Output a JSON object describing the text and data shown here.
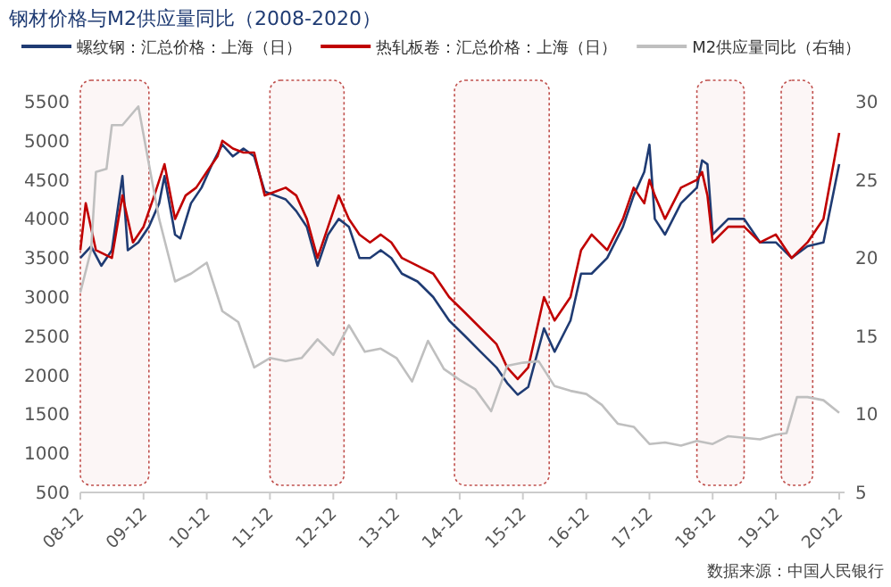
{
  "chart_data": {
    "type": "line",
    "title": "钢材价格与M2供应量同比（2008-2020）",
    "legend": "top",
    "grid": false,
    "line_style": "solid",
    "xlim": [
      "2008-12",
      "2021-01"
    ],
    "xticks": [
      {
        "value": "2008-12",
        "label": "08-12"
      },
      {
        "value": "2009-12",
        "label": "09-12"
      },
      {
        "value": "2010-12",
        "label": "10-12"
      },
      {
        "value": "2011-12",
        "label": "11-12"
      },
      {
        "value": "2012-12",
        "label": "12-12"
      },
      {
        "value": "2013-12",
        "label": "13-12"
      },
      {
        "value": "2014-12",
        "label": "14-12"
      },
      {
        "value": "2015-12",
        "label": "15-12"
      },
      {
        "value": "2016-12",
        "label": "16-12"
      },
      {
        "value": "2017-12",
        "label": "17-12"
      },
      {
        "value": "2018-12",
        "label": "18-12"
      },
      {
        "value": "2019-12",
        "label": "19-12"
      },
      {
        "value": "2020-12",
        "label": "20-12"
      }
    ],
    "ylim": [
      500,
      5500
    ],
    "yticks": [
      500,
      1000,
      1500,
      2000,
      2500,
      3000,
      3500,
      4000,
      4500,
      5000,
      5500
    ],
    "y2lim": [
      5,
      30
    ],
    "y2ticks": [
      5,
      10,
      15,
      20,
      25,
      30
    ],
    "series": [
      {
        "name": "螺纹钢：汇总价格：上海（日）",
        "color": "#1f3b73",
        "x": [
          "2008-12",
          "2009-02",
          "2009-04",
          "2009-06",
          "2009-08",
          "2009-09",
          "2009-11",
          "2010-01",
          "2010-03",
          "2010-04",
          "2010-06",
          "2010-07",
          "2010-09",
          "2010-11",
          "2011-01",
          "2011-03",
          "2011-05",
          "2011-07",
          "2011-09",
          "2011-11",
          "2012-01",
          "2012-03",
          "2012-05",
          "2012-07",
          "2012-09",
          "2012-11",
          "2013-01",
          "2013-03",
          "2013-05",
          "2013-07",
          "2013-09",
          "2013-11",
          "2014-01",
          "2014-04",
          "2014-07",
          "2014-10",
          "2015-01",
          "2015-04",
          "2015-07",
          "2015-09",
          "2015-11",
          "2016-01",
          "2016-04",
          "2016-06",
          "2016-09",
          "2016-11",
          "2017-01",
          "2017-04",
          "2017-07",
          "2017-09",
          "2017-11",
          "2017-12",
          "2018-01",
          "2018-03",
          "2018-06",
          "2018-09",
          "2018-10",
          "2018-11",
          "2018-12",
          "2019-03",
          "2019-06",
          "2019-09",
          "2019-12",
          "2020-03",
          "2020-06",
          "2020-09",
          "2020-12"
        ],
        "values": [
          3500,
          3650,
          3400,
          3600,
          4550,
          3600,
          3700,
          3900,
          4200,
          4550,
          3800,
          3750,
          4200,
          4400,
          4700,
          4950,
          4800,
          4900,
          4800,
          4350,
          4300,
          4250,
          4100,
          3900,
          3400,
          3800,
          4000,
          3900,
          3500,
          3500,
          3600,
          3500,
          3300,
          3200,
          3000,
          2700,
          2500,
          2300,
          2100,
          1900,
          1750,
          1850,
          2600,
          2300,
          2700,
          3300,
          3300,
          3500,
          3900,
          4300,
          4600,
          4950,
          4000,
          3800,
          4200,
          4400,
          4750,
          4700,
          3800,
          4000,
          4000,
          3700,
          3700,
          3500,
          3650,
          3700,
          4700
        ]
      },
      {
        "name": "热轧板卷：汇总价格：上海（日）",
        "color": "#c00000",
        "x": [
          "2008-12",
          "2009-01",
          "2009-03",
          "2009-06",
          "2009-08",
          "2009-10",
          "2009-12",
          "2010-02",
          "2010-04",
          "2010-06",
          "2010-08",
          "2010-10",
          "2010-12",
          "2011-02",
          "2011-03",
          "2011-05",
          "2011-07",
          "2011-09",
          "2011-11",
          "2012-01",
          "2012-03",
          "2012-05",
          "2012-07",
          "2012-09",
          "2012-11",
          "2013-01",
          "2013-03",
          "2013-05",
          "2013-07",
          "2013-09",
          "2013-11",
          "2014-01",
          "2014-04",
          "2014-07",
          "2014-10",
          "2015-01",
          "2015-04",
          "2015-07",
          "2015-09",
          "2015-11",
          "2016-01",
          "2016-04",
          "2016-06",
          "2016-09",
          "2016-11",
          "2017-01",
          "2017-04",
          "2017-07",
          "2017-09",
          "2017-11",
          "2017-12",
          "2018-01",
          "2018-03",
          "2018-06",
          "2018-09",
          "2018-10",
          "2018-11",
          "2018-12",
          "2019-03",
          "2019-06",
          "2019-09",
          "2019-12",
          "2020-03",
          "2020-06",
          "2020-09",
          "2020-12"
        ],
        "values": [
          3600,
          4200,
          3600,
          3500,
          4300,
          3700,
          3900,
          4300,
          4700,
          4000,
          4300,
          4400,
          4600,
          4800,
          5000,
          4900,
          4850,
          4850,
          4300,
          4350,
          4400,
          4300,
          4000,
          3500,
          3900,
          4300,
          4000,
          3800,
          3700,
          3800,
          3700,
          3500,
          3400,
          3300,
          3000,
          2800,
          2600,
          2400,
          2100,
          1950,
          2100,
          3000,
          2700,
          3000,
          3600,
          3800,
          3600,
          4000,
          4400,
          4200,
          4500,
          4300,
          4000,
          4400,
          4500,
          4600,
          4300,
          3700,
          3900,
          3900,
          3700,
          3800,
          3500,
          3700,
          4000,
          5100
        ]
      },
      {
        "name": "M2供应量同比（右轴）",
        "color": "#bfbfbf",
        "axis": "y2",
        "x": [
          "2008-12",
          "2009-02",
          "2009-03",
          "2009-05",
          "2009-06",
          "2009-08",
          "2009-11",
          "2010-01",
          "2010-03",
          "2010-06",
          "2010-09",
          "2010-12",
          "2011-03",
          "2011-06",
          "2011-09",
          "2011-12",
          "2012-03",
          "2012-06",
          "2012-09",
          "2012-12",
          "2013-03",
          "2013-06",
          "2013-09",
          "2013-12",
          "2014-03",
          "2014-06",
          "2014-09",
          "2014-12",
          "2015-03",
          "2015-06",
          "2015-09",
          "2015-12",
          "2016-03",
          "2016-06",
          "2016-09",
          "2016-12",
          "2017-03",
          "2017-06",
          "2017-09",
          "2017-12",
          "2018-03",
          "2018-06",
          "2018-09",
          "2018-12",
          "2019-03",
          "2019-06",
          "2019-09",
          "2019-12",
          "2020-02",
          "2020-04",
          "2020-06",
          "2020-09",
          "2020-12"
        ],
        "values": [
          17.8,
          20.5,
          25.5,
          25.7,
          28.5,
          28.5,
          29.7,
          26,
          22.5,
          18.5,
          19,
          19.7,
          16.6,
          15.9,
          13,
          13.6,
          13.4,
          13.6,
          14.8,
          13.8,
          15.7,
          14,
          14.2,
          13.6,
          12.1,
          14.7,
          12.9,
          12.2,
          11.6,
          10.2,
          13.1,
          13.3,
          13.4,
          11.8,
          11.5,
          11.3,
          10.6,
          9.4,
          9.2,
          8.1,
          8.2,
          8,
          8.3,
          8.1,
          8.6,
          8.5,
          8.4,
          8.7,
          8.8,
          11.1,
          11.1,
          10.9,
          10.1
        ]
      }
    ],
    "bands": [
      {
        "axis": "x",
        "from": "2008-12",
        "to": "2010-01",
        "color": "#c0504d"
      },
      {
        "axis": "x",
        "from": "2011-12",
        "to": "2013-02",
        "color": "#c0504d"
      },
      {
        "axis": "x",
        "from": "2014-11",
        "to": "2016-05",
        "color": "#c0504d"
      },
      {
        "axis": "x",
        "from": "2018-09",
        "to": "2019-06",
        "color": "#c0504d"
      },
      {
        "axis": "x",
        "from": "2020-01",
        "to": "2020-07",
        "color": "#c0504d"
      }
    ],
    "annotations": [
      "数据来源：中国人民银行"
    ]
  }
}
